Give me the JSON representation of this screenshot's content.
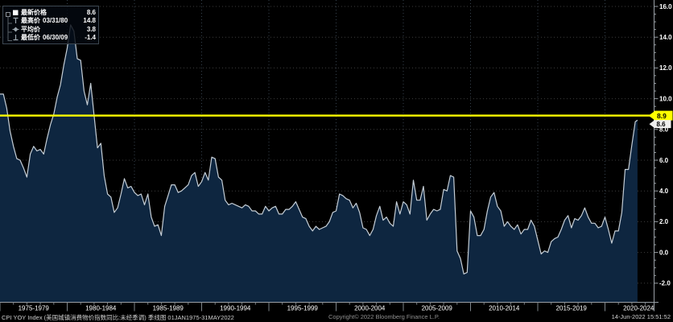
{
  "legend": {
    "rows": [
      {
        "marker": "latest-square",
        "label": "最新价格",
        "date": "",
        "value": "8.6"
      },
      {
        "marker": "high-tick",
        "label": "最高价",
        "date": "03/31/80",
        "value": "14.8"
      },
      {
        "marker": "average-diamond",
        "label": "平均价",
        "date": "",
        "value": "3.8"
      },
      {
        "marker": "low-tick",
        "label": "最低价",
        "date": "06/30/09",
        "value": "-1.4"
      }
    ]
  },
  "annotations": {
    "yellow_line_value": 8.9,
    "yellow_line_label": "8.9",
    "last_price_value": 8.6,
    "last_price_label": "8.6"
  },
  "footer": {
    "left": "CPI YOY Index (美国城镇消费物价指数同比:未经季调) 季线图 01JAN1975-31MAY2022",
    "center": "Copyright© 2022 Bloomberg Finance L.P.",
    "right": "14-Jun-2022 15:51:52"
  },
  "colors": {
    "background": "#000000",
    "area_fill": "#0e2640",
    "price_line": "#c5ced6",
    "yellow_line": "#ffff00",
    "axis": "#9aa0a6",
    "grid_h": "#3d3d3d",
    "grid_v": "#36424e",
    "tick_text": "#ffffff",
    "badge_last_bg": "#eeeeee"
  },
  "chart_data": {
    "type": "area",
    "title": "CPI YOY Index (美国城镇消费物价指数同比:未经季调)",
    "subtitle": "季线图 01JAN1975-31MAY2022",
    "frequency": "quarterly",
    "x_start": "1975-03-31",
    "x_end": "2022-05-31",
    "x_band_labels": [
      "1975-1979",
      "1980-1984",
      "1985-1989",
      "1990-1994",
      "1995-1999",
      "2000-2004",
      "2005-2009",
      "2010-2014",
      "2015-2019",
      "2020-2024"
    ],
    "y_ticks": [
      16,
      14,
      12,
      10,
      8,
      6,
      4,
      2,
      0,
      -2
    ],
    "y_tick_labels": [
      "16.0",
      "14.0",
      "12.0",
      "10.0",
      "8.0",
      "6.0",
      "4.0",
      "2.0",
      "0.0",
      "-2.0"
    ],
    "ylim": [
      -3.3,
      16.4
    ],
    "grid": "dotted",
    "legend_position": "top-left",
    "stats": {
      "last": 8.6,
      "high": 14.8,
      "high_date": "03/31/80",
      "average": 3.8,
      "low": -1.4,
      "low_date": "06/30/09"
    },
    "values": [
      10.3,
      9.4,
      7.9,
      6.9,
      6.1,
      6.0,
      5.5,
      4.9,
      6.4,
      6.9,
      6.6,
      6.7,
      6.4,
      7.4,
      8.3,
      9.0,
      10.1,
      10.9,
      12.2,
      13.3,
      14.8,
      14.4,
      12.6,
      12.5,
      10.5,
      9.6,
      11.0,
      8.9,
      6.8,
      7.1,
      5.0,
      3.8,
      3.6,
      2.6,
      2.9,
      3.8,
      4.8,
      4.2,
      4.3,
      3.9,
      3.7,
      3.8,
      3.1,
      3.8,
      2.3,
      1.7,
      1.8,
      1.1,
      3.0,
      3.7,
      4.4,
      4.4,
      3.9,
      4.0,
      4.2,
      4.4,
      5.0,
      5.2,
      4.3,
      4.6,
      5.2,
      4.7,
      6.2,
      6.1,
      4.9,
      4.7,
      3.4,
      3.1,
      3.2,
      3.1,
      3.0,
      2.9,
      3.1,
      3.0,
      2.7,
      2.7,
      2.5,
      2.5,
      3.0,
      2.7,
      2.9,
      3.0,
      2.5,
      2.5,
      2.8,
      2.8,
      3.0,
      3.3,
      2.8,
      2.3,
      2.2,
      1.7,
      1.4,
      1.7,
      1.5,
      1.6,
      1.7,
      2.0,
      2.6,
      2.7,
      3.8,
      3.7,
      3.5,
      3.4,
      2.9,
      3.2,
      2.6,
      1.6,
      1.5,
      1.1,
      1.5,
      2.4,
      3.0,
      2.1,
      2.3,
      1.9,
      1.7,
      3.3,
      2.5,
      3.3,
      3.1,
      2.5,
      4.7,
      3.4,
      3.4,
      4.3,
      2.1,
      2.5,
      2.8,
      2.7,
      2.8,
      4.1,
      4.0,
      5.0,
      4.9,
      0.1,
      -0.4,
      -1.4,
      -1.3,
      2.7,
      2.3,
      1.1,
      1.1,
      1.5,
      2.7,
      3.6,
      3.9,
      3.0,
      2.7,
      1.7,
      2.0,
      1.7,
      1.5,
      1.8,
      1.2,
      1.5,
      1.5,
      2.1,
      1.7,
      0.8,
      -0.1,
      0.1,
      0.0,
      0.7,
      0.9,
      1.0,
      1.5,
      2.1,
      2.4,
      1.6,
      2.2,
      2.1,
      2.4,
      2.9,
      2.3,
      1.9,
      1.9,
      1.6,
      1.7,
      2.3,
      1.5,
      0.6,
      1.4,
      1.4,
      2.6,
      5.4,
      5.4,
      7.0,
      8.5,
      8.6
    ]
  }
}
